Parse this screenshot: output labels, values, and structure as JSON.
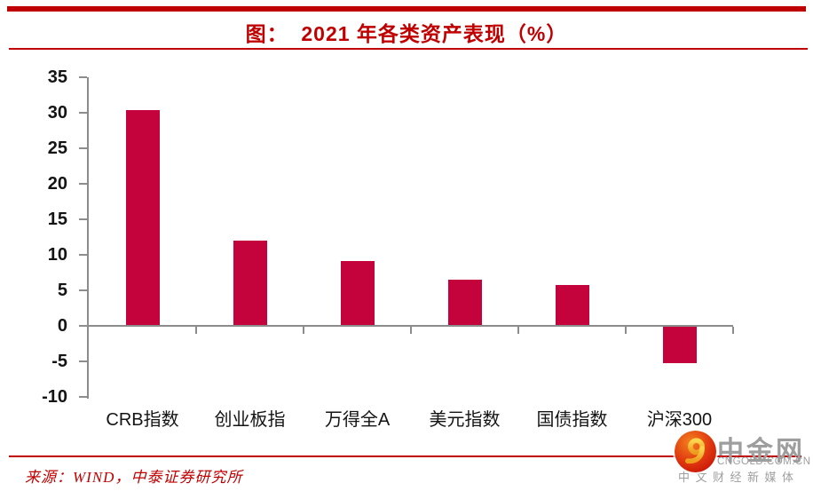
{
  "title": {
    "text": "图：  2021 年各类资产表现（%）"
  },
  "chart_data": {
    "type": "bar",
    "title": "2021 年各类资产表现（%）",
    "categories": [
      "CRB指数",
      "创业板指",
      "万得全A",
      "美元指数",
      "国债指数",
      "沪深300"
    ],
    "values": [
      30.4,
      12.0,
      9.1,
      6.5,
      5.8,
      -5.3
    ],
    "xlabel": "",
    "ylabel": "",
    "ylim": [
      -10,
      35
    ],
    "yticks": [
      35,
      30,
      25,
      20,
      15,
      10,
      5,
      0,
      -5,
      -10
    ],
    "grid": false,
    "legend": null,
    "bar_color": "#C4023C",
    "axis_color": "#8C8C8C"
  },
  "source": {
    "text": "来源：WIND，中泰证券研究所"
  },
  "watermark": {
    "brand": "中金网",
    "domain": "CNGOLD.COM.CN",
    "tagline": "中文财经新媒体",
    "logo": "cngold-flame-swirl"
  },
  "colors": {
    "accent_red": "#C00000",
    "top_bar_red": "#BE0000",
    "bar_crimson": "#C4023C",
    "axis_gray": "#8C8C8C",
    "watermark_gray": "#9E9E9E",
    "text_black": "#141414"
  }
}
